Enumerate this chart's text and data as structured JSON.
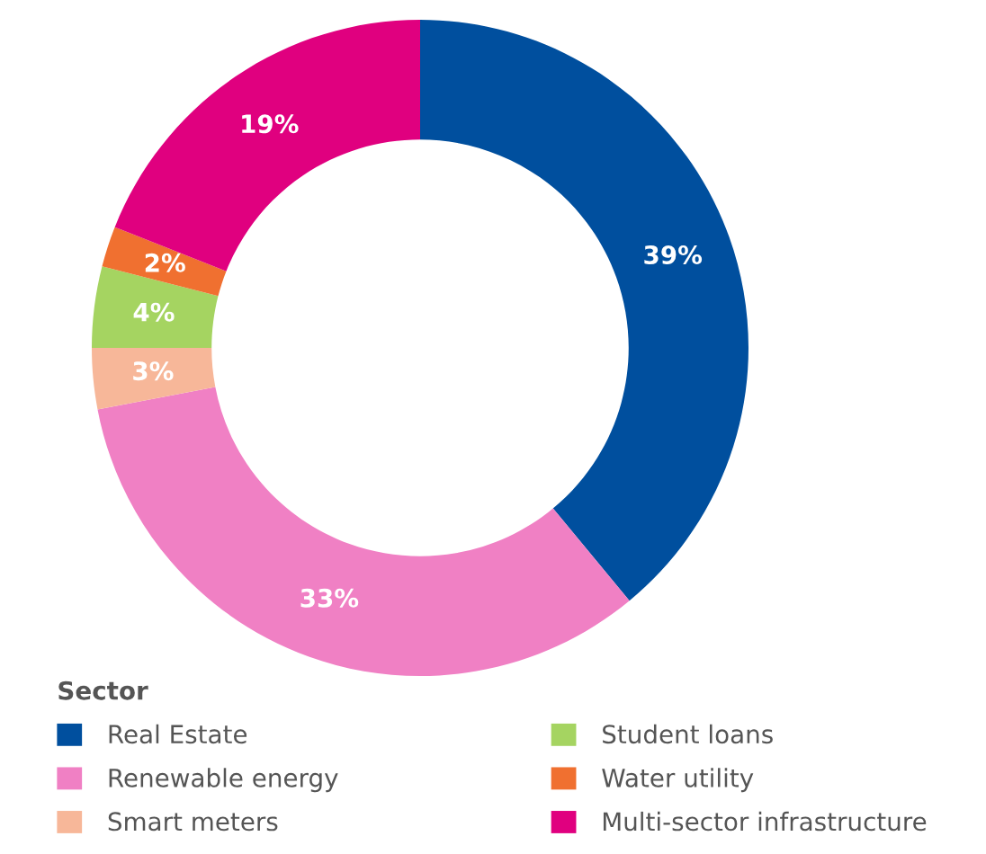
{
  "chart_data": {
    "type": "donut",
    "legend_title": "Sector",
    "categories": [
      "Real Estate",
      "Renewable energy",
      "Smart meters",
      "Student loans",
      "Water utility",
      "Multi-sector infrastructure"
    ],
    "values": [
      39,
      33,
      3,
      4,
      2,
      19
    ],
    "colors": [
      "#004f9e",
      "#f080c4",
      "#f7b799",
      "#a5d461",
      "#f07030",
      "#e0007f"
    ],
    "value_labels": [
      "39%",
      "33%",
      "3%",
      "4%",
      "2%",
      "19%"
    ],
    "legend": "bottom"
  }
}
